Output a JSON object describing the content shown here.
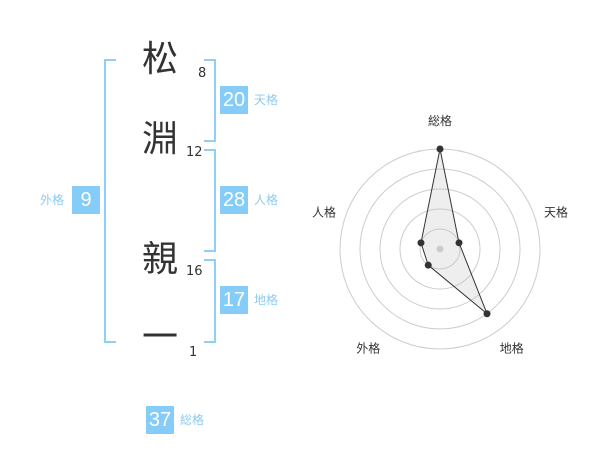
{
  "name_chars": [
    {
      "char": "松",
      "strokes": "8"
    },
    {
      "char": "淵",
      "strokes": "12"
    },
    {
      "char": "親",
      "strokes": "16"
    },
    {
      "char": "一",
      "strokes": "1"
    }
  ],
  "kaku": {
    "tenkaku": {
      "value": "20",
      "label": "天格"
    },
    "jinkaku": {
      "value": "28",
      "label": "人格"
    },
    "chikaku": {
      "value": "17",
      "label": "地格"
    },
    "gaikaku": {
      "value": "9",
      "label": "外格"
    },
    "soukaku": {
      "value": "37",
      "label": "総格"
    }
  },
  "colors": {
    "accent": "#86ccf8",
    "bracket": "#8fd0fa",
    "label": "#8ccbf2"
  },
  "chart_data": {
    "type": "radar",
    "axes": [
      "総格",
      "天格",
      "地格",
      "外格",
      "人格"
    ],
    "values": [
      5,
      1,
      4,
      1,
      1
    ],
    "range": [
      0,
      5
    ],
    "rings": 5
  }
}
